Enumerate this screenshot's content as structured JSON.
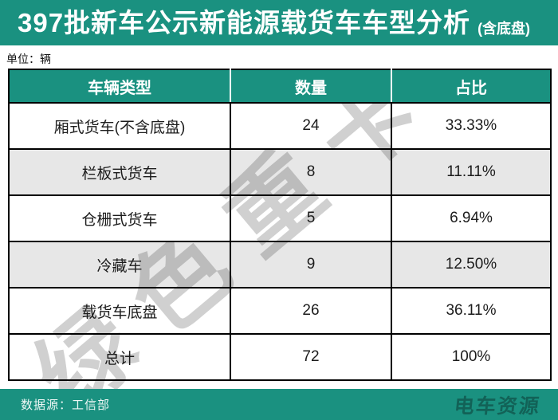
{
  "page": {
    "title": "397批新车公示新能源载货车车型分析",
    "title_suffix": "(含底盘)",
    "unit_label": "单位：辆",
    "watermark": "绿色重卡"
  },
  "chart_data": {
    "type": "table",
    "title": "397批新车公示新能源载货车车型分析 (含底盘)",
    "unit": "辆",
    "columns": [
      "车辆类型",
      "数量",
      "占比"
    ],
    "rows": [
      [
        "厢式货车(不含底盘)",
        24,
        "33.33%"
      ],
      [
        "栏板式货车",
        8,
        "11.11%"
      ],
      [
        "仓栅式货车",
        5,
        "6.94%"
      ],
      [
        "冷藏车",
        9,
        "12.50%"
      ],
      [
        "载货车底盘",
        26,
        "36.11%"
      ],
      [
        "总计",
        72,
        "100%"
      ]
    ],
    "total": 72,
    "source": "工信部"
  },
  "footer": {
    "source_label": "数据源：工信部",
    "logo_text": "电车资源"
  },
  "colors": {
    "teal": "#1a9180",
    "alt_row": "#e8e8e8",
    "watermark": "#d0d0d0",
    "border": "#000000"
  }
}
